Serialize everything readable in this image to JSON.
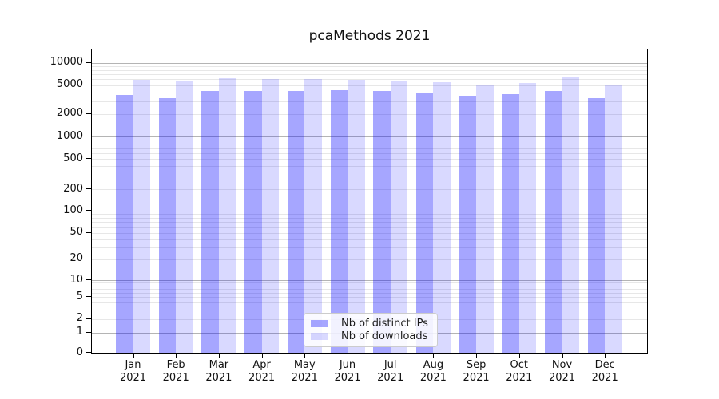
{
  "title": "pcaMethods 2021",
  "chart_data": {
    "type": "bar",
    "title": "pcaMethods 2021",
    "categories": [
      "Jan",
      "Feb",
      "Mar",
      "Apr",
      "May",
      "Jun",
      "Jul",
      "Aug",
      "Sep",
      "Oct",
      "Nov",
      "Dec"
    ],
    "year_label": "2021",
    "series": [
      {
        "name": "Nb of distinct IPs",
        "color": "#a6a6ff",
        "rgba": "rgba(0,0,255,0.35)",
        "values": [
          3650,
          3300,
          4150,
          4200,
          4150,
          4250,
          4150,
          3900,
          3600,
          3750,
          4200,
          3300
        ]
      },
      {
        "name": "Nb of downloads",
        "color": "#d9d9ff",
        "rgba": "rgba(0,0,255,0.15)",
        "values": [
          5850,
          5700,
          6200,
          6000,
          6100,
          5950,
          5600,
          5450,
          5000,
          5350,
          6450,
          5000
        ]
      }
    ],
    "xlabel": "",
    "ylabel": "",
    "yaxis": {
      "scale": "symlog",
      "ticks": [
        0,
        1,
        2,
        5,
        10,
        20,
        50,
        100,
        200,
        500,
        1000,
        2000,
        5000,
        10000
      ],
      "ylim": [
        0,
        15000
      ]
    },
    "grid": true,
    "legend_position": "lower center"
  },
  "colors": {
    "background": "#ffffff",
    "axis": "#000000",
    "grid_major": "#b4b4b4",
    "grid_minor": "#e7e7e7",
    "legend_border": "#cccccc"
  }
}
